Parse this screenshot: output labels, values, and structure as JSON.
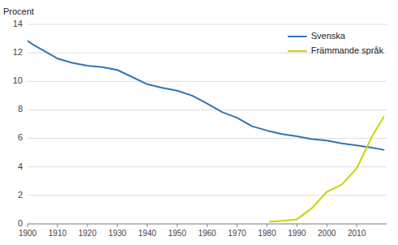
{
  "chart_data": {
    "type": "line",
    "y_label": "Procent",
    "series": [
      {
        "name": "Svenska",
        "color": "#2E75B6",
        "x": [
          1900,
          1902,
          1905,
          1910,
          1915,
          1920,
          1925,
          1930,
          1935,
          1940,
          1945,
          1950,
          1955,
          1960,
          1965,
          1970,
          1975,
          1980,
          1985,
          1990,
          1995,
          2000,
          2005,
          2010,
          2015,
          2019
        ],
        "values": [
          12.85,
          12.55,
          12.2,
          11.6,
          11.3,
          11.1,
          11.0,
          10.8,
          10.3,
          9.8,
          9.55,
          9.35,
          9.0,
          8.45,
          7.85,
          7.45,
          6.85,
          6.55,
          6.3,
          6.15,
          5.95,
          5.85,
          5.65,
          5.5,
          5.35,
          5.2
        ]
      },
      {
        "name": "Främmande språk",
        "color": "#C8D400",
        "x": [
          1981,
          1985,
          1990,
          1995,
          2000,
          2005,
          2010,
          2015,
          2019
        ],
        "values": [
          0.15,
          0.22,
          0.32,
          1.1,
          2.25,
          2.75,
          3.9,
          6.1,
          7.5
        ]
      }
    ],
    "xlim": [
      1900,
      2020
    ],
    "xticks": [
      1900,
      1910,
      1920,
      1930,
      1940,
      1950,
      1960,
      1970,
      1980,
      1990,
      2000,
      2010
    ],
    "ylim": [
      0,
      14
    ],
    "yticks": [
      0,
      2,
      4,
      6,
      8,
      10,
      12,
      14
    ],
    "grid": "y",
    "legend": "upper right"
  }
}
